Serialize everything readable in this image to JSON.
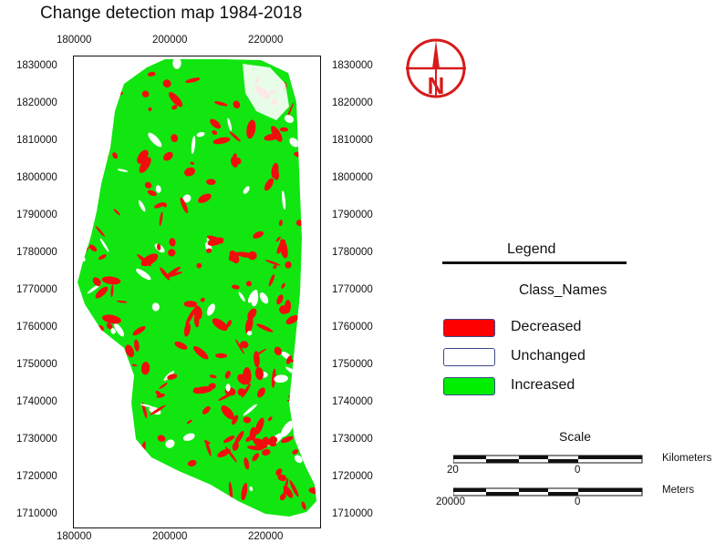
{
  "title": "Change detection map 1984-2018",
  "x_ticks": [
    "180000",
    "200000",
    "220000"
  ],
  "y_ticks": [
    "1830000",
    "1820000",
    "1810000",
    "1800000",
    "1790000",
    "1780000",
    "1770000",
    "1760000",
    "1750000",
    "1740000",
    "1730000",
    "1720000",
    "1710000"
  ],
  "legend": {
    "title": "Legend",
    "subtitle": "Class_Names",
    "items": [
      {
        "label": "Decreased",
        "color": "#ff0000"
      },
      {
        "label": "Unchanged",
        "color": "#ffffff"
      },
      {
        "label": "Increased",
        "color": "#00ee00"
      }
    ]
  },
  "north_arrow": {
    "letter": "N",
    "color": "#d81a1a"
  },
  "scale": {
    "title": "Scale",
    "km_unit": "Kilometers",
    "km_left": "20",
    "km_zero": "0",
    "m_unit": "Meters",
    "m_left": "20000",
    "m_zero": "0"
  }
}
